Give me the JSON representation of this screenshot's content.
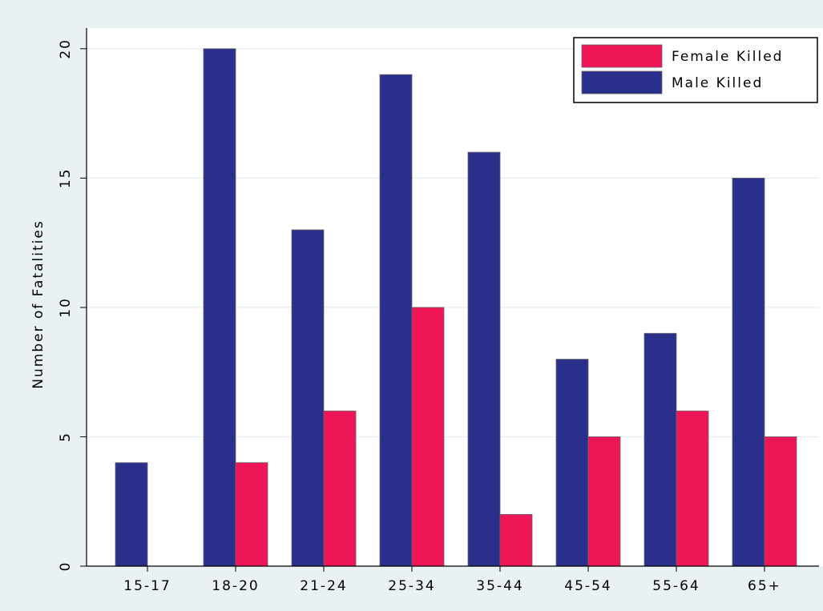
{
  "chart_data": {
    "type": "bar",
    "y_label": "Number of Fatalities",
    "categories": [
      "15-17",
      "18-20",
      "21-24",
      "25-34",
      "35-44",
      "45-54",
      "55-64",
      "65+"
    ],
    "series": [
      {
        "name": "Female Killed",
        "color": "#ee1656",
        "values": [
          0,
          4,
          6,
          10,
          2,
          5,
          6,
          5
        ]
      },
      {
        "name": "Male Killed",
        "color": "#2b2f8c",
        "values": [
          4,
          20,
          13,
          19,
          16,
          8,
          9,
          15
        ]
      }
    ],
    "ylim": [
      0,
      20.8
    ],
    "yticks": [
      0,
      5,
      10,
      15,
      20
    ],
    "grid": true,
    "legend": "top-right"
  }
}
